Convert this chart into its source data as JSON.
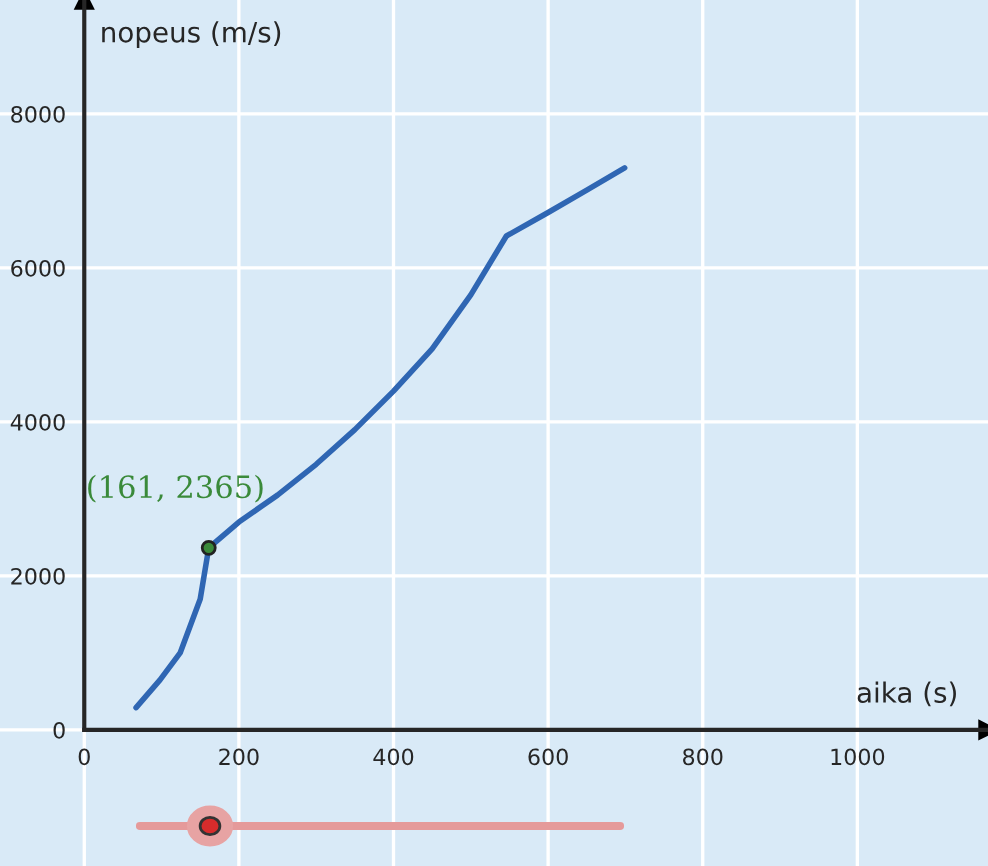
{
  "chart_data": {
    "type": "line",
    "xlabel": "aika (s)",
    "ylabel": "nopeus (m/s)",
    "xlim": [
      -109,
      1169
    ],
    "ylim": [
      -1767,
      9480
    ],
    "xticks": [
      0,
      200,
      400,
      600,
      800,
      1000
    ],
    "yticks": [
      0,
      2000,
      4000,
      6000,
      8000
    ],
    "grid": true,
    "series": [
      {
        "color": "#2f66b3",
        "x": [
          67,
          98,
          124,
          150,
          161,
          200,
          250,
          300,
          350,
          400,
          450,
          500,
          546,
          600,
          650,
          699
        ],
        "values": [
          290,
          650,
          1000,
          1700,
          2365,
          2700,
          3050,
          3450,
          3900,
          4400,
          4950,
          5650,
          6415,
          6720,
          7010,
          7300
        ]
      },
      {
        "type": "scatter",
        "color": "#3a8a3a",
        "x": [
          161
        ],
        "values": [
          2365
        ]
      }
    ],
    "annotations": [
      {
        "text": "(161, 2365)",
        "x": 161,
        "y": 2365
      }
    ]
  }
}
